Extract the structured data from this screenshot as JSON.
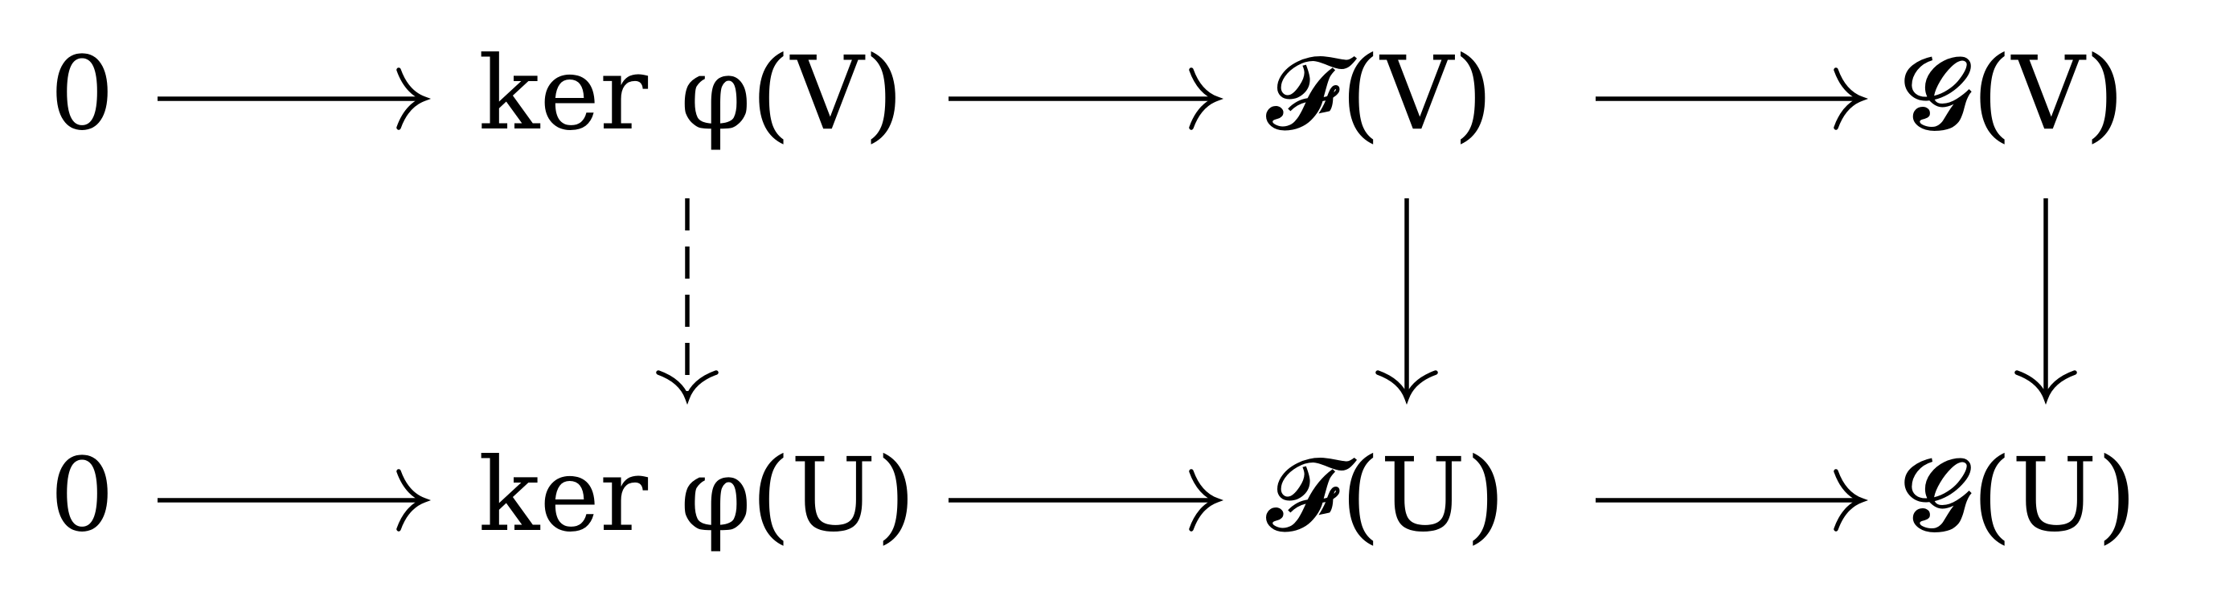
{
  "diagram": {
    "nodes": {
      "top_zero": "0",
      "top_ker": "ker φ(V)",
      "top_F": "𝓕(V)",
      "top_G": "𝓖(V)",
      "bottom_zero": "0",
      "bottom_ker": "ker φ(U)",
      "bottom_F": "𝓕(U)",
      "bottom_G": "𝓖(U)"
    },
    "edges": [
      {
        "from": "top_zero",
        "to": "top_ker",
        "style": "solid"
      },
      {
        "from": "top_ker",
        "to": "top_F",
        "style": "solid"
      },
      {
        "from": "top_F",
        "to": "top_G",
        "style": "solid"
      },
      {
        "from": "bottom_zero",
        "to": "bottom_ker",
        "style": "solid"
      },
      {
        "from": "bottom_ker",
        "to": "bottom_F",
        "style": "solid"
      },
      {
        "from": "bottom_F",
        "to": "bottom_G",
        "style": "solid"
      },
      {
        "from": "top_ker",
        "to": "bottom_ker",
        "style": "dashed"
      },
      {
        "from": "top_F",
        "to": "bottom_F",
        "style": "solid"
      },
      {
        "from": "top_G",
        "to": "bottom_G",
        "style": "solid"
      }
    ]
  }
}
